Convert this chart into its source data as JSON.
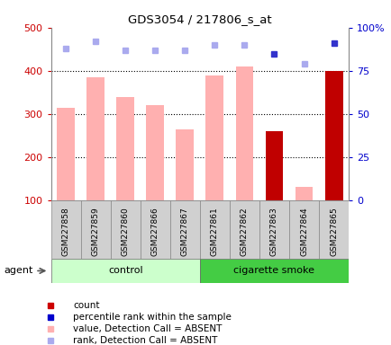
{
  "title": "GDS3054 / 217806_s_at",
  "samples": [
    "GSM227858",
    "GSM227859",
    "GSM227860",
    "GSM227866",
    "GSM227867",
    "GSM227861",
    "GSM227862",
    "GSM227863",
    "GSM227864",
    "GSM227865"
  ],
  "bar_values": [
    315,
    385,
    340,
    320,
    265,
    390,
    410,
    260,
    130,
    400
  ],
  "bar_colors": [
    "#ffb0b0",
    "#ffb0b0",
    "#ffb0b0",
    "#ffb0b0",
    "#ffb0b0",
    "#ffb0b0",
    "#ffb0b0",
    "#c00000",
    "#ffb0b0",
    "#c00000"
  ],
  "rank_values": [
    88,
    92,
    87,
    87,
    87,
    90,
    90,
    85,
    79,
    91
  ],
  "rank_colors": [
    "#aaaaee",
    "#aaaaee",
    "#aaaaee",
    "#aaaaee",
    "#aaaaee",
    "#aaaaee",
    "#aaaaee",
    "#3333cc",
    "#aaaaee",
    "#3333cc"
  ],
  "ylim_left": [
    100,
    500
  ],
  "ylim_right": [
    0,
    100
  ],
  "yticks_left": [
    100,
    200,
    300,
    400,
    500
  ],
  "yticks_right": [
    0,
    25,
    50,
    75,
    100
  ],
  "ytick_labels_right": [
    "0",
    "25",
    "50",
    "75",
    "100%"
  ],
  "left_color": "#cc0000",
  "right_color": "#0000cc",
  "legend_items": [
    {
      "label": "count",
      "color": "#cc0000"
    },
    {
      "label": "percentile rank within the sample",
      "color": "#0000cc"
    },
    {
      "label": "value, Detection Call = ABSENT",
      "color": "#ffb0b0"
    },
    {
      "label": "rank, Detection Call = ABSENT",
      "color": "#aaaaee"
    }
  ],
  "control_color": "#ccffcc",
  "smoke_color": "#44cc44",
  "box_bg": "#d0d0d0"
}
